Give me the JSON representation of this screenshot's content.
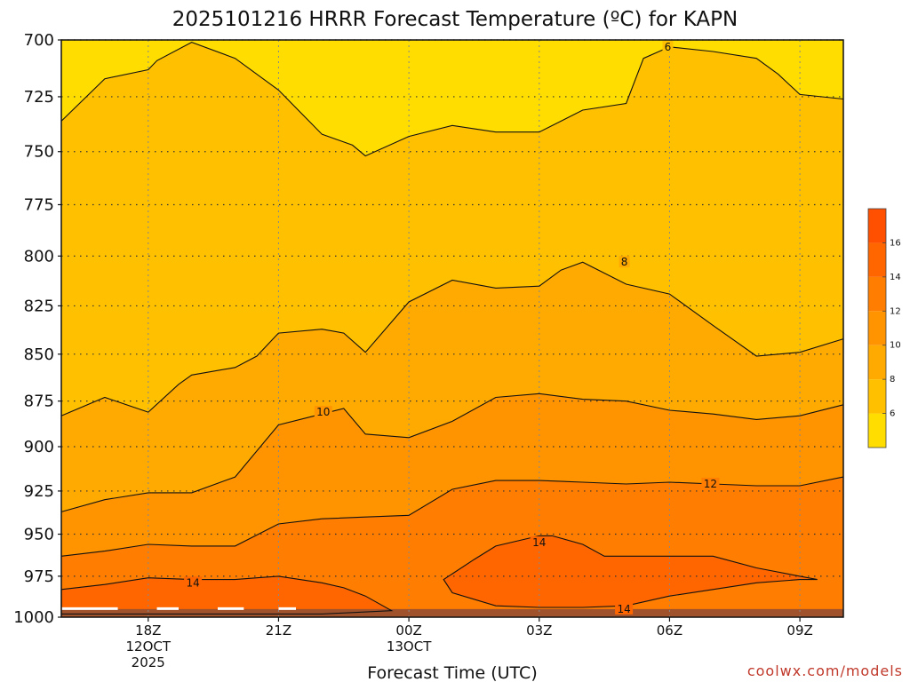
{
  "title": "2025101216 HRRR Forecast Temperature (ºC) for KAPN",
  "credit": "coolwx.com/models",
  "chart_data": {
    "type": "contour",
    "title": "2025101216 HRRR Forecast Temperature (ºC) for KAPN",
    "xlabel": "Forecast Time (UTC)",
    "ylabel": "",
    "ylim": [
      700,
      1000
    ],
    "yscale": "log-pressure-inverted",
    "xlim": [
      16,
      34
    ],
    "x_unit": "hours from 2025-10-12 00Z",
    "yticks": [
      700,
      725,
      750,
      775,
      800,
      825,
      850,
      875,
      900,
      925,
      950,
      975,
      1000
    ],
    "xticks": [
      {
        "x": 18,
        "lines": [
          "18Z",
          "12OCT",
          "2025"
        ]
      },
      {
        "x": 21,
        "lines": [
          "21Z"
        ]
      },
      {
        "x": 24,
        "lines": [
          "00Z",
          "13OCT"
        ]
      },
      {
        "x": 27,
        "lines": [
          "03Z"
        ]
      },
      {
        "x": 30,
        "lines": [
          "06Z"
        ]
      },
      {
        "x": 33,
        "lines": [
          "09Z"
        ]
      }
    ],
    "grid": true,
    "colorbar": {
      "levels": [
        4,
        6,
        8,
        10,
        12,
        14,
        16,
        18
      ],
      "colors": [
        "#ffdd00",
        "#ffc000",
        "#ffaa00",
        "#ff9400",
        "#ff7d00",
        "#ff6600",
        "#ff4f00"
      ],
      "tick_labels": [
        "6",
        "8",
        "10",
        "12",
        "14",
        "16"
      ]
    },
    "contours": [
      {
        "level": 6,
        "label": "6",
        "label_at": [
          29.96,
          703
        ],
        "points": [
          [
            16,
            736
          ],
          [
            17,
            717
          ],
          [
            18,
            713
          ],
          [
            18.2,
            709
          ],
          [
            19,
            701
          ],
          [
            20,
            708
          ],
          [
            21,
            722
          ],
          [
            22,
            742
          ],
          [
            22.7,
            747
          ],
          [
            23,
            752
          ],
          [
            24,
            743
          ],
          [
            25,
            738
          ],
          [
            26,
            741
          ],
          [
            27,
            741
          ],
          [
            28,
            731
          ],
          [
            29,
            728
          ],
          [
            29.4,
            708
          ],
          [
            30,
            703
          ],
          [
            31,
            705
          ],
          [
            32,
            708
          ],
          [
            32.5,
            715
          ],
          [
            33,
            724
          ],
          [
            34,
            726
          ]
        ]
      },
      {
        "level": 8,
        "label": "8",
        "label_at": [
          28.96,
          803
        ],
        "points": [
          [
            16,
            883
          ],
          [
            17,
            873
          ],
          [
            18,
            881
          ],
          [
            18.7,
            866
          ],
          [
            19,
            861
          ],
          [
            20,
            857
          ],
          [
            20.5,
            851
          ],
          [
            21,
            839
          ],
          [
            22,
            837
          ],
          [
            22.5,
            839
          ],
          [
            23,
            849
          ],
          [
            24,
            823
          ],
          [
            25,
            812
          ],
          [
            26,
            816
          ],
          [
            27,
            815
          ],
          [
            27.5,
            807
          ],
          [
            28,
            803
          ],
          [
            29,
            814
          ],
          [
            30,
            819
          ],
          [
            31,
            835
          ],
          [
            32,
            851
          ],
          [
            33,
            849
          ],
          [
            34,
            842
          ]
        ]
      },
      {
        "level": 10,
        "label": "10",
        "label_at": [
          22.03,
          881
        ],
        "points": [
          [
            16,
            937
          ],
          [
            17,
            930
          ],
          [
            18,
            926
          ],
          [
            19,
            926
          ],
          [
            20,
            917
          ],
          [
            21,
            888
          ],
          [
            22,
            882
          ],
          [
            22.5,
            879
          ],
          [
            23,
            893
          ],
          [
            24,
            895
          ],
          [
            25,
            886
          ],
          [
            26,
            873
          ],
          [
            27,
            871
          ],
          [
            28,
            874
          ],
          [
            29,
            875
          ],
          [
            30,
            880
          ],
          [
            31,
            882
          ],
          [
            32,
            885
          ],
          [
            33,
            883
          ],
          [
            34,
            877
          ]
        ]
      },
      {
        "level": 12,
        "label": "12",
        "label_at": [
          30.94,
          921
        ],
        "points": [
          [
            16,
            963
          ],
          [
            17,
            960
          ],
          [
            18,
            956
          ],
          [
            19,
            957
          ],
          [
            20,
            957
          ],
          [
            21,
            944
          ],
          [
            22,
            941
          ],
          [
            23,
            940
          ],
          [
            24,
            939
          ],
          [
            25,
            924
          ],
          [
            26,
            919
          ],
          [
            27,
            919
          ],
          [
            28,
            920
          ],
          [
            29,
            921
          ],
          [
            30,
            920
          ],
          [
            31,
            921
          ],
          [
            32,
            922
          ],
          [
            33,
            922
          ],
          [
            34,
            917
          ]
        ]
      },
      {
        "level": 14,
        "label": "14",
        "label_at": [
          19.03,
          979
        ],
        "points": [
          [
            16,
            983
          ],
          [
            17,
            980
          ],
          [
            18,
            976
          ],
          [
            19,
            977
          ],
          [
            19.5,
            977
          ],
          [
            20,
            977
          ],
          [
            20.5,
            976
          ],
          [
            21,
            975
          ],
          [
            22,
            979
          ],
          [
            22.5,
            982
          ],
          [
            23,
            987
          ],
          [
            23.6,
            996
          ],
          [
            22,
            998
          ],
          [
            21,
            998
          ],
          [
            20,
            998
          ],
          [
            19,
            998
          ],
          [
            18,
            998
          ],
          [
            17,
            998
          ],
          [
            16,
            998
          ]
        ]
      },
      {
        "level": 14,
        "label": "14",
        "label_at": [
          27.0,
          955
        ],
        "points": [
          [
            24.8,
            977
          ],
          [
            25.5,
            965
          ],
          [
            26,
            957
          ],
          [
            27,
            951
          ],
          [
            27.3,
            951
          ],
          [
            28,
            956
          ],
          [
            28.5,
            963
          ],
          [
            29,
            963
          ],
          [
            30,
            963
          ],
          [
            31,
            963
          ],
          [
            32,
            970
          ],
          [
            33,
            975
          ],
          [
            33.4,
            977
          ],
          [
            33,
            977
          ],
          [
            32,
            979
          ],
          [
            31,
            983
          ],
          [
            30,
            987
          ],
          [
            29,
            993
          ],
          [
            28,
            994
          ],
          [
            27,
            994
          ],
          [
            26,
            993
          ],
          [
            25,
            985
          ],
          [
            24.8,
            977
          ]
        ]
      },
      {
        "level": 14,
        "label": "14",
        "label_at": [
          28.95,
          995
        ],
        "points": []
      }
    ]
  }
}
